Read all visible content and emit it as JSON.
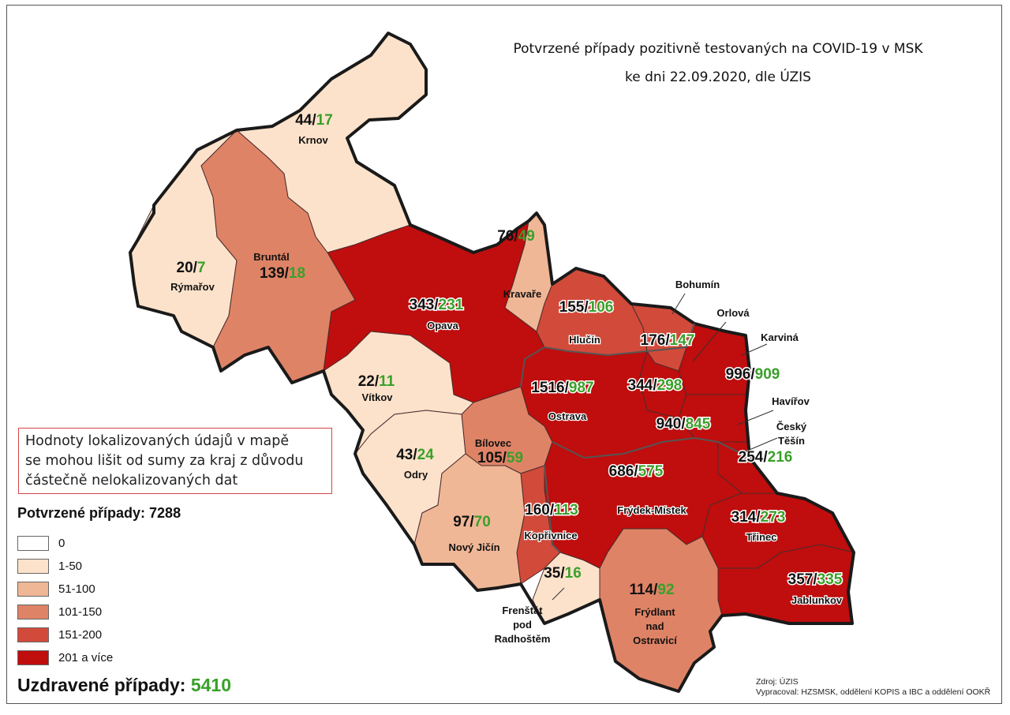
{
  "title_line1": "Potvrzené případy pozitivně testovaných na COVID-19 v MSK",
  "title_line2": "ke dni 22.09.2020, dle ÚZIS",
  "note": [
    "Hodnoty lokalizovaných údajů v mapě",
    "se mohou lišit od sumy za kraj z důvodu",
    "částečně nelokalizovaných dat"
  ],
  "confirmed_label": "Potvrzené případy: 7288",
  "recovered_label": "Uzdravené případy:",
  "recovered_value": "5410",
  "source_line1": "Zdroj: ÚZIS",
  "source_line2": "Vypracoval: HZSMSK, oddělení KOPIS a IBC a oddělení OOKŘ",
  "legend": [
    {
      "label": "0",
      "color": "#ffffff"
    },
    {
      "label": "1-50",
      "color": "#fde2cb"
    },
    {
      "label": "51-100",
      "color": "#f0b796"
    },
    {
      "label": "101-150",
      "color": "#df8366"
    },
    {
      "label": "151-200",
      "color": "#d24a3a"
    },
    {
      "label": "201 a více",
      "color": "#c00d0d"
    }
  ],
  "colors": {
    "positive": "#111111",
    "recovered": "#3aa02a"
  },
  "districts": [
    {
      "name": "Krnov",
      "confirmed": "44",
      "recovered": "17"
    },
    {
      "name": "Rýmařov",
      "confirmed": "20",
      "recovered": "7"
    },
    {
      "name": "Bruntál",
      "confirmed": "139",
      "recovered": "18"
    },
    {
      "name": "Opava",
      "confirmed": "343",
      "recovered": "231"
    },
    {
      "name": "Kravaře",
      "confirmed": "76",
      "recovered": "49"
    },
    {
      "name": "Hlučín",
      "confirmed": "155",
      "recovered": "106"
    },
    {
      "name": "Bohumín",
      "confirmed": "176",
      "recovered": "147"
    },
    {
      "name": "Orlová",
      "confirmed": "344",
      "recovered": "298"
    },
    {
      "name": "Karviná",
      "confirmed": "996",
      "recovered": "909"
    },
    {
      "name": "Havířov",
      "confirmed": "940",
      "recovered": "845"
    },
    {
      "name": "Český Těšín",
      "confirmed": "254",
      "recovered": "216"
    },
    {
      "name": "Vítkov",
      "confirmed": "22",
      "recovered": "11"
    },
    {
      "name": "Ostrava",
      "confirmed": "1516",
      "recovered": "987"
    },
    {
      "name": "Bílovec",
      "confirmed": "105",
      "recovered": "59"
    },
    {
      "name": "Odry",
      "confirmed": "43",
      "recovered": "24"
    },
    {
      "name": "Frýdek-Místek",
      "confirmed": "686",
      "recovered": "575"
    },
    {
      "name": "Třinec",
      "confirmed": "314",
      "recovered": "273"
    },
    {
      "name": "Kopřivnice",
      "confirmed": "160",
      "recovered": "113"
    },
    {
      "name": "Nový Jičín",
      "confirmed": "97",
      "recovered": "70"
    },
    {
      "name": "Frenštát pod Radhoštěm",
      "confirmed": "35",
      "recovered": "16"
    },
    {
      "name": "Frýdlant nad Ostravicí",
      "confirmed": "114",
      "recovered": "92"
    },
    {
      "name": "Jablunkov",
      "confirmed": "357",
      "recovered": "335"
    }
  ]
}
